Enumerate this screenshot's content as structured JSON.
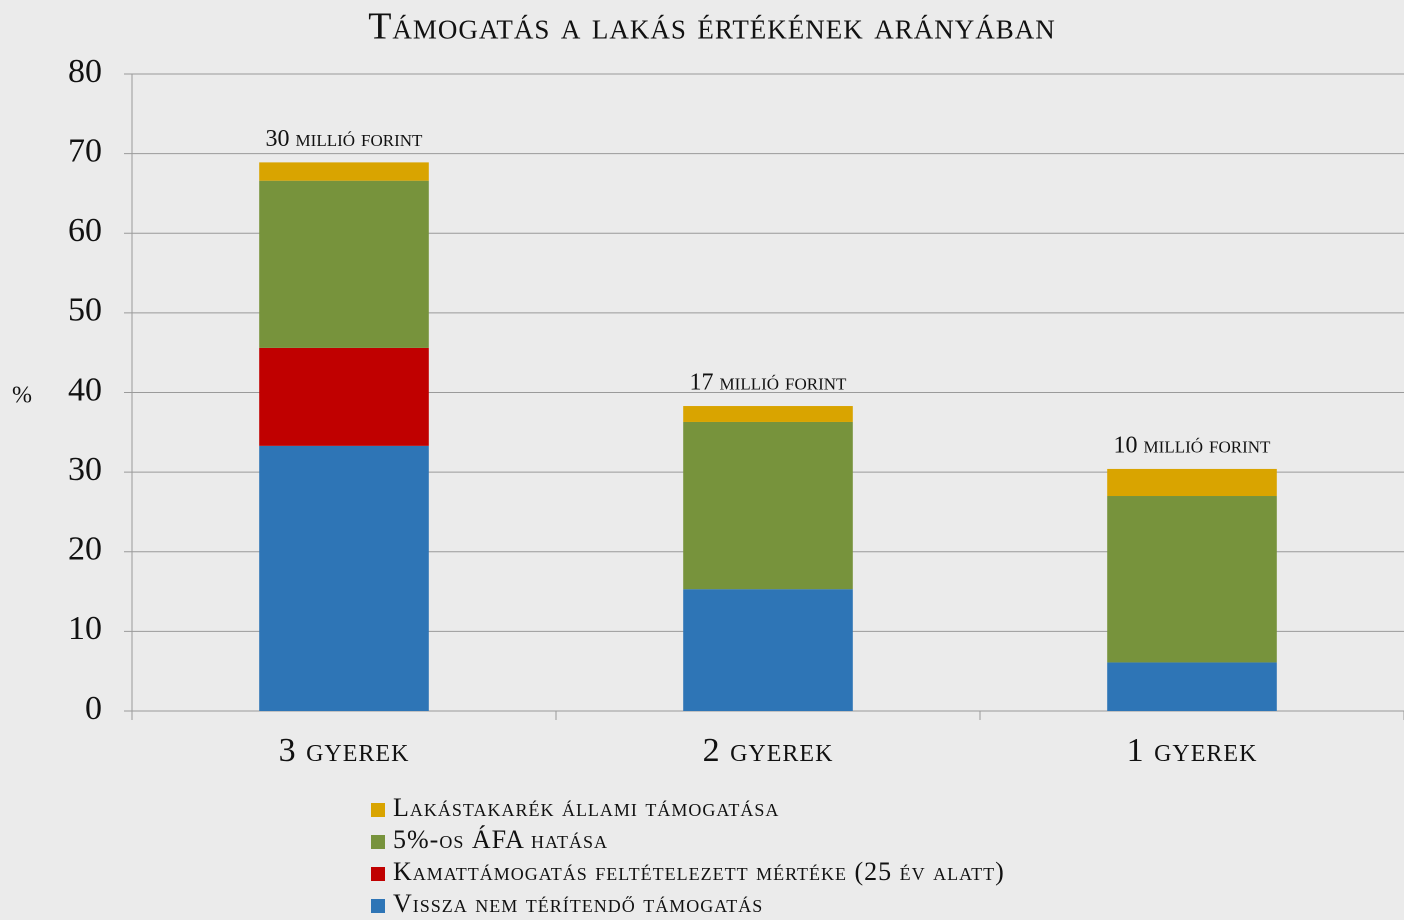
{
  "chart_data": {
    "type": "stacked_bar",
    "title": "Támogatás a lakás értékének arányában",
    "y_label": "%",
    "categories": [
      "3 gyerek",
      "2 gyerek",
      "1 gyerek"
    ],
    "bar_labels": [
      "30 millió forint",
      "17 millió forint",
      "10 millió forint"
    ],
    "series": [
      {
        "name": "Vissza nem térítendő támogatás",
        "color": "#2e75b6",
        "values": [
          33.3,
          15.3,
          6.1
        ]
      },
      {
        "name": "Kamattámogatás feltételezett mértéke (25 év alatt)",
        "color": "#c00000",
        "values": [
          12.3,
          0,
          0
        ]
      },
      {
        "name": "5%-os ÁFA hatása",
        "color": "#77933c",
        "values": [
          21.0,
          21.0,
          20.9
        ]
      },
      {
        "name": "Lakástakarék állami támogatása",
        "color": "#d9a400",
        "values": [
          2.3,
          2.0,
          3.4
        ]
      }
    ],
    "ylim": [
      0,
      80
    ],
    "yticks": [
      0,
      10,
      20,
      30,
      40,
      50,
      60,
      70,
      80
    ],
    "grid": true
  }
}
